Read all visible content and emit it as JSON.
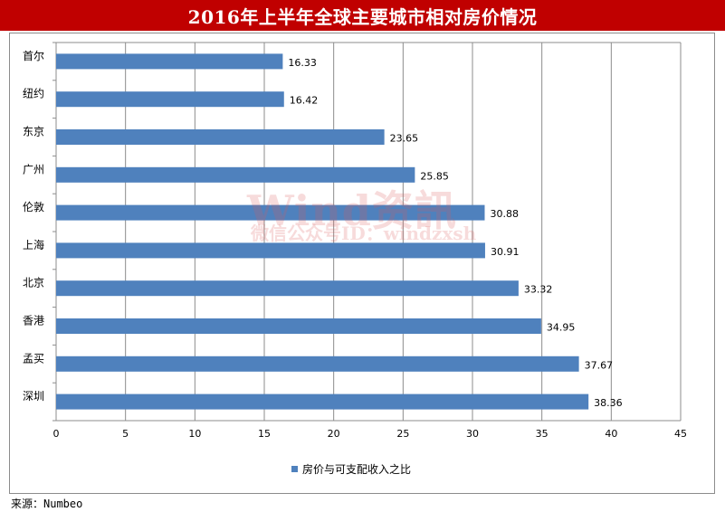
{
  "title": "2016年上半年全球主要城市相对房价情况",
  "source": "来源：Numbeo",
  "watermark": {
    "main": "Wind资訊",
    "sub": "微信公众号ID：windzxsh"
  },
  "colors": {
    "title_bg": "#c00000",
    "bar": "#4f81bd",
    "grid": "#8c8c8c"
  },
  "chart_data": {
    "type": "bar",
    "orientation": "horizontal",
    "categories": [
      "首尔",
      "纽约",
      "东京",
      "广州",
      "伦敦",
      "上海",
      "北京",
      "香港",
      "孟买",
      "深圳"
    ],
    "series": [
      {
        "name": "房价与可支配收入之比",
        "values": [
          16.33,
          16.42,
          23.65,
          25.85,
          30.88,
          30.91,
          33.32,
          34.95,
          37.67,
          38.36
        ]
      }
    ],
    "xlim": [
      0,
      45
    ],
    "xticks": [
      0,
      5,
      10,
      15,
      20,
      25,
      30,
      35,
      40,
      45
    ],
    "grid": true,
    "legend": "bottom",
    "data_labels": true
  }
}
